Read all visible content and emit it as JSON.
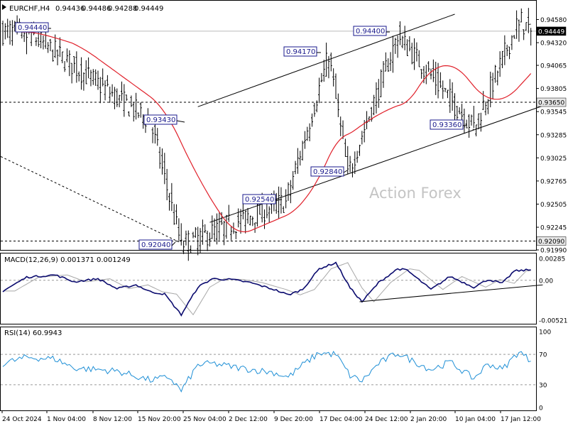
{
  "chart_data": [
    {
      "type": "candlestick",
      "title": "EURCHF,H4",
      "ohlc_readout": {
        "open": "0.94436",
        "high": "0.94486",
        "low": "0.94288",
        "close": "0.94449"
      },
      "price_axis": {
        "ylim": [
          0.9199,
          0.9464
        ],
        "ticks": [
          "0.94580",
          "0.94320",
          "0.94065",
          "0.93805",
          "0.93545",
          "0.93285",
          "0.93025",
          "0.92765",
          "0.92505",
          "0.92245",
          "0.91990"
        ]
      },
      "time_axis": {
        "ticks": [
          "24 Oct 2024",
          "1 Nov 04:00",
          "8 Nov 12:00",
          "15 Nov 20:00",
          "25 Nov 04:00",
          "2 Dec 12:00",
          "9 Dec 20:00",
          "17 Dec 04:00",
          "24 Dec 12:00",
          "2 Jan 20:00",
          "10 Jan 04:00",
          "17 Jan 12:00"
        ]
      },
      "current_price_label": "0.94449",
      "horizontal_levels": [
        {
          "label": "0.93650",
          "value": 0.9365
        },
        {
          "label": "0.92090",
          "value": 0.9209
        }
      ],
      "annotations": [
        {
          "label": "0.94440",
          "value": 0.9444
        },
        {
          "label": "0.93430",
          "value": 0.9343
        },
        {
          "label": "0.92040",
          "value": 0.9204
        },
        {
          "label": "0.92540",
          "value": 0.9254
        },
        {
          "label": "0.94170",
          "value": 0.9417
        },
        {
          "label": "0.92840",
          "value": 0.9284
        },
        {
          "label": "0.94400",
          "value": 0.944
        },
        {
          "label": "0.93360",
          "value": 0.9336
        }
      ],
      "key_points": [
        {
          "bar": 10,
          "value": 0.9444
        },
        {
          "bar": 62,
          "value": 0.9343
        },
        {
          "bar": 75,
          "value": 0.9204
        },
        {
          "bar": 119,
          "value": 0.9254
        },
        {
          "bar": 137,
          "value": 0.9417
        },
        {
          "bar": 145,
          "value": 0.9284
        },
        {
          "bar": 166,
          "value": 0.944
        },
        {
          "bar": 198,
          "value": 0.9336
        },
        {
          "bar": 217,
          "value": 0.9458
        },
        {
          "bar": 222,
          "value": 0.94449
        }
      ],
      "moving_average": {
        "color": "#e0202a"
      },
      "trend_channel": {
        "upper": {
          "from": {
            "bar": 82,
            "value": 0.936
          },
          "to": {
            "bar": 190,
            "value": 0.9464
          }
        },
        "lower": {
          "from": {
            "bar": 87,
            "value": 0.923
          },
          "to": {
            "bar": 227,
            "value": 0.9361
          }
        }
      },
      "dotted_trendline": {
        "from": {
          "bar": 0,
          "value": 0.9304
        },
        "to": {
          "bar": 74,
          "value": 0.9208
        }
      },
      "watermark": "Action Forex",
      "colors": {
        "bars": "#000000",
        "label_border": "#1a1a8c",
        "label_text": "#1a1a8c"
      }
    },
    {
      "type": "line",
      "title": "MACD(12,26,9) 0.001371 0.001249",
      "ylim": [
        -0.00521,
        0.00285
      ],
      "ticks": [
        "0.00285",
        "0.00",
        "-0.00521"
      ],
      "key_points": [
        {
          "bar": 0,
          "value": -0.0014
        },
        {
          "bar": 10,
          "value": 0.0004
        },
        {
          "bar": 22,
          "value": 0.0007
        },
        {
          "bar": 30,
          "value": -0.0002
        },
        {
          "bar": 40,
          "value": 0.0002
        },
        {
          "bar": 48,
          "value": -0.0011
        },
        {
          "bar": 56,
          "value": -0.0006
        },
        {
          "bar": 62,
          "value": -0.0015
        },
        {
          "bar": 68,
          "value": -0.0018
        },
        {
          "bar": 75,
          "value": -0.0045
        },
        {
          "bar": 82,
          "value": -0.0009
        },
        {
          "bar": 88,
          "value": 0.0002
        },
        {
          "bar": 96,
          "value": 0.0001
        },
        {
          "bar": 104,
          "value": -0.0003
        },
        {
          "bar": 114,
          "value": -0.0012
        },
        {
          "bar": 120,
          "value": -0.0019
        },
        {
          "bar": 126,
          "value": -0.0012
        },
        {
          "bar": 133,
          "value": 0.0015
        },
        {
          "bar": 140,
          "value": 0.0023
        },
        {
          "bar": 146,
          "value": -0.001
        },
        {
          "bar": 151,
          "value": -0.0028
        },
        {
          "bar": 158,
          "value": -0.0003
        },
        {
          "bar": 166,
          "value": 0.0015
        },
        {
          "bar": 170,
          "value": 0.0013
        },
        {
          "bar": 180,
          "value": -0.0012
        },
        {
          "bar": 188,
          "value": 0.0005
        },
        {
          "bar": 198,
          "value": -0.0009
        },
        {
          "bar": 204,
          "value": 0.0001
        },
        {
          "bar": 210,
          "value": -0.0004
        },
        {
          "bar": 215,
          "value": 0.0012
        },
        {
          "bar": 222,
          "value": 0.00137
        }
      ],
      "signal_lag_bars": 5,
      "support_line": {
        "from": {
          "bar": 150,
          "value": -0.0028
        },
        "to": {
          "bar": 227,
          "value": -0.0006
        }
      },
      "colors": {
        "macd": "#0a0a6e",
        "signal": "#a8a8a8"
      }
    },
    {
      "type": "line",
      "title": "RSI(14) 60.9943",
      "ylim": [
        0,
        100
      ],
      "ticks": [
        "100",
        "70",
        "30",
        "0"
      ],
      "levels": [
        70,
        30
      ],
      "key_points": [
        {
          "bar": 0,
          "value": 58
        },
        {
          "bar": 10,
          "value": 66
        },
        {
          "bar": 22,
          "value": 64
        },
        {
          "bar": 30,
          "value": 52
        },
        {
          "bar": 40,
          "value": 50
        },
        {
          "bar": 48,
          "value": 48
        },
        {
          "bar": 62,
          "value": 36
        },
        {
          "bar": 70,
          "value": 40
        },
        {
          "bar": 75,
          "value": 22
        },
        {
          "bar": 82,
          "value": 56
        },
        {
          "bar": 88,
          "value": 58
        },
        {
          "bar": 100,
          "value": 52
        },
        {
          "bar": 114,
          "value": 46
        },
        {
          "bar": 120,
          "value": 40
        },
        {
          "bar": 126,
          "value": 56
        },
        {
          "bar": 133,
          "value": 72
        },
        {
          "bar": 140,
          "value": 70
        },
        {
          "bar": 146,
          "value": 42
        },
        {
          "bar": 151,
          "value": 35
        },
        {
          "bar": 158,
          "value": 58
        },
        {
          "bar": 166,
          "value": 72
        },
        {
          "bar": 172,
          "value": 62
        },
        {
          "bar": 180,
          "value": 50
        },
        {
          "bar": 188,
          "value": 60
        },
        {
          "bar": 198,
          "value": 38
        },
        {
          "bar": 204,
          "value": 58
        },
        {
          "bar": 210,
          "value": 50
        },
        {
          "bar": 217,
          "value": 74
        },
        {
          "bar": 222,
          "value": 61
        }
      ],
      "colors": {
        "rsi": "#1e8fd6"
      }
    }
  ]
}
